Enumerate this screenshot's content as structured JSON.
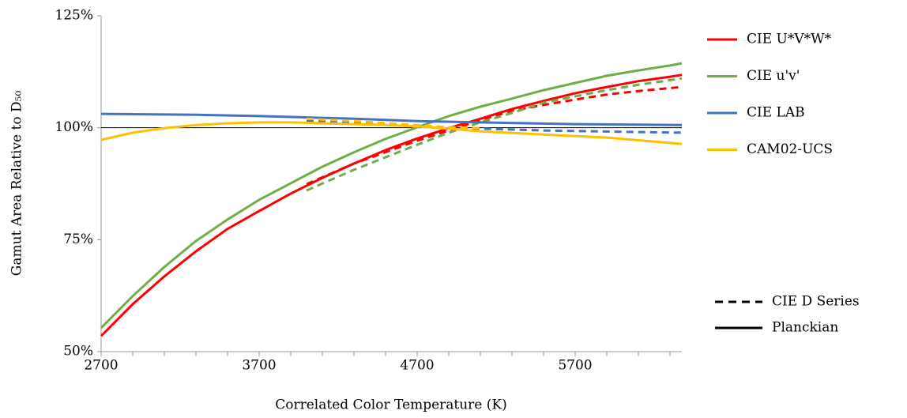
{
  "chart_data": {
    "type": "line",
    "xlabel": "Correlated Color Temperature (K)",
    "ylabel": "Gamut Area Relative to D₅₀",
    "xlim": [
      2700,
      6375
    ],
    "xticks": [
      2700,
      3700,
      4700,
      5700
    ],
    "xminorticks": [
      2900,
      3100,
      3300,
      3500,
      3900,
      4100,
      4300,
      4500,
      4900,
      5100,
      5300,
      5500,
      5900,
      6100,
      6300
    ],
    "ylim": [
      50,
      125
    ],
    "yticks": [
      {
        "value": 50,
        "label": "50%"
      },
      {
        "value": 75,
        "label": "75%"
      },
      {
        "value": 100,
        "label": "100%"
      },
      {
        "value": 125,
        "label": "125%"
      }
    ],
    "reference_line": 100,
    "styles": [
      {
        "name": "CIE D Series",
        "dashed": true
      },
      {
        "name": "Planckian",
        "dashed": false
      }
    ],
    "series": [
      {
        "name": "CIE U*V*W*",
        "color": "#ff0000",
        "lines": [
          {
            "style": 1,
            "x": [
              2700,
              2900,
              3100,
              3300,
              3500,
              3700,
              3900,
              4100,
              4300,
              4500,
              4700,
              4900,
              5100,
              5300,
              5500,
              5700,
              5900,
              6100,
              6300,
              6375
            ],
            "values": [
              53.5,
              60.6,
              66.8,
              72.4,
              77.4,
              81.4,
              85.3,
              88.8,
              92,
              95,
              97.6,
              99.9,
              102,
              104.2,
              106,
              107.7,
              109.1,
              110.4,
              111.4,
              111.8
            ]
          },
          {
            "style": 0,
            "x": [
              4000,
              4300,
              4700,
              4900,
              5100,
              5300,
              5500,
              5700,
              5900,
              6100,
              6375
            ],
            "values": [
              87.4,
              92,
              97.1,
              99.4,
              101.7,
              103.8,
              105.1,
              106.3,
              107.4,
              108.2,
              109.1
            ]
          }
        ]
      },
      {
        "name": "CIE u'v'",
        "color": "#70ad47",
        "lines": [
          {
            "style": 1,
            "x": [
              2700,
              2900,
              3100,
              3300,
              3500,
              3700,
              3900,
              4100,
              4300,
              4500,
              4700,
              4900,
              5100,
              5300,
              5500,
              5700,
              5900,
              6100,
              6300,
              6375
            ],
            "values": [
              55.3,
              62.4,
              68.9,
              74.7,
              79.5,
              83.9,
              87.6,
              91.3,
              94.5,
              97.5,
              100.1,
              102.6,
              104.7,
              106.5,
              108.4,
              110,
              111.6,
              112.8,
              113.9,
              114.4
            ]
          },
          {
            "style": 0,
            "x": [
              4000,
              4300,
              4700,
              4900,
              5100,
              5300,
              5500,
              5700,
              5900,
              6100,
              6375
            ],
            "values": [
              86,
              90.6,
              96.2,
              98.9,
              101.2,
              103.3,
              105.6,
              107,
              108.4,
              109.6,
              111
            ]
          }
        ]
      },
      {
        "name": "CIE LAB",
        "color": "#4472c4",
        "lines": [
          {
            "style": 1,
            "x": [
              2700,
              3300,
              3700,
              4300,
              4700,
              5100,
              5700,
              6375
            ],
            "values": [
              103.1,
              102.9,
              102.6,
              102,
              101.5,
              101.2,
              100.8,
              100.6
            ]
          },
          {
            "style": 0,
            "x": [
              4000,
              4300,
              4700,
              5100,
              5500,
              6000,
              6375
            ],
            "values": [
              101.5,
              101.2,
              100.3,
              99.8,
              99.4,
              99.1,
              98.9
            ]
          }
        ]
      },
      {
        "name": "CAM02-UCS",
        "color": "#ffc000",
        "lines": [
          {
            "style": 1,
            "x": [
              2700,
              2900,
              3100,
              3300,
              3500,
              3700,
              3900,
              4100,
              4300,
              4500,
              4700,
              4900,
              5100,
              5500,
              5900,
              6375
            ],
            "values": [
              97.3,
              98.9,
              99.9,
              100.6,
              101,
              101.2,
              101.2,
              101,
              100.8,
              100.6,
              100.3,
              99.8,
              99.2,
              98.5,
              97.8,
              96.4
            ]
          },
          {
            "style": 0,
            "x": [
              4000,
              4300,
              4700,
              4900,
              5100
            ],
            "values": [
              102,
              101.5,
              100.6,
              100.1,
              99.9
            ]
          }
        ]
      }
    ]
  }
}
